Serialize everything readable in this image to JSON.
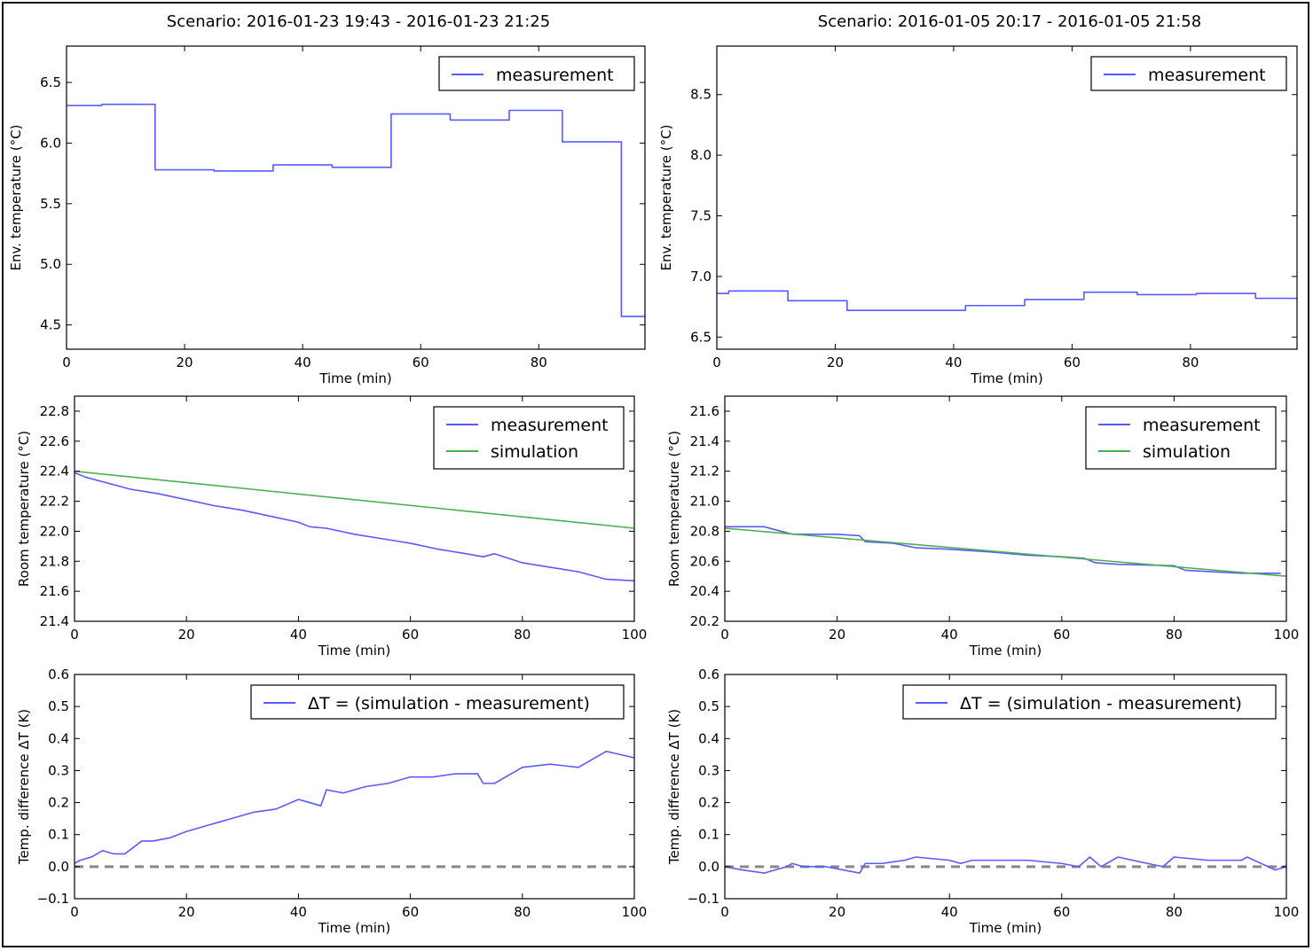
{
  "colors": {
    "measurement": "#5a5aff",
    "simulation": "#4caf50",
    "zero_line": "#888888"
  },
  "chart_data": [
    {
      "id": "env-left",
      "type": "line",
      "title": "Scenario: 2016-01-23 19:43 - 2016-01-23 21:25",
      "xlabel": "Time (min)",
      "ylabel": "Env. temperature (°C)",
      "xlim": [
        0,
        98
      ],
      "ylim": [
        4.3,
        6.8
      ],
      "xticks": [
        0,
        20,
        40,
        60,
        80
      ],
      "yticks": [
        4.5,
        5.0,
        5.5,
        6.0,
        6.5
      ],
      "ytick_labels": [
        "4.5",
        "5.0",
        "5.5",
        "6.0",
        "6.5"
      ],
      "legend": "top-right",
      "series": [
        {
          "name": "measurement",
          "color_key": "measurement",
          "step": true,
          "x": [
            0,
            6,
            15,
            25,
            35,
            45,
            55,
            65,
            75,
            84,
            94,
            98
          ],
          "y": [
            6.31,
            6.32,
            5.78,
            5.77,
            5.82,
            5.8,
            6.24,
            6.19,
            6.27,
            6.01,
            4.57,
            4.57
          ]
        }
      ]
    },
    {
      "id": "env-right",
      "type": "line",
      "title": "Scenario: 2016-01-05 20:17 - 2016-01-05 21:58",
      "xlabel": "Time (min)",
      "ylabel": "Env. temperature (°C)",
      "xlim": [
        0,
        98
      ],
      "ylim": [
        6.4,
        8.9
      ],
      "xticks": [
        0,
        20,
        40,
        60,
        80
      ],
      "yticks": [
        6.5,
        7.0,
        7.5,
        8.0,
        8.5
      ],
      "ytick_labels": [
        "6.5",
        "7.0",
        "7.5",
        "8.0",
        "8.5"
      ],
      "legend": "top-right",
      "series": [
        {
          "name": "measurement",
          "color_key": "measurement",
          "step": true,
          "x": [
            0,
            2,
            12,
            22,
            32,
            42,
            52,
            62,
            71,
            81,
            91,
            98
          ],
          "y": [
            6.86,
            6.88,
            6.8,
            6.72,
            6.72,
            6.76,
            6.81,
            6.87,
            6.85,
            6.86,
            6.82,
            6.82
          ]
        }
      ]
    },
    {
      "id": "room-left",
      "type": "line",
      "xlabel": "Time (min)",
      "ylabel": "Room temperature (°C)",
      "xlim": [
        0,
        100
      ],
      "ylim": [
        21.4,
        22.9
      ],
      "xticks": [
        0,
        20,
        40,
        60,
        80,
        100
      ],
      "yticks": [
        21.4,
        21.6,
        21.8,
        22.0,
        22.2,
        22.4,
        22.6,
        22.8
      ],
      "ytick_labels": [
        "21.4",
        "21.6",
        "21.8",
        "22.0",
        "22.2",
        "22.4",
        "22.6",
        "22.8"
      ],
      "legend": "top-right",
      "series": [
        {
          "name": "measurement",
          "color_key": "measurement",
          "x": [
            0,
            2,
            5,
            10,
            15,
            20,
            25,
            30,
            35,
            40,
            42,
            45,
            50,
            55,
            60,
            65,
            70,
            73,
            75,
            80,
            85,
            90,
            95,
            100
          ],
          "y": [
            22.39,
            22.36,
            22.33,
            22.28,
            22.25,
            22.21,
            22.17,
            22.14,
            22.1,
            22.06,
            22.03,
            22.02,
            21.98,
            21.95,
            21.92,
            21.88,
            21.85,
            21.83,
            21.85,
            21.79,
            21.76,
            21.73,
            21.68,
            21.67
          ]
        },
        {
          "name": "simulation",
          "color_key": "simulation",
          "x": [
            0,
            100
          ],
          "y": [
            22.4,
            22.02
          ]
        }
      ]
    },
    {
      "id": "room-right",
      "type": "line",
      "xlabel": "Time (min)",
      "ylabel": "Room temperature (°C)",
      "xlim": [
        0,
        100
      ],
      "ylim": [
        20.2,
        21.7
      ],
      "xticks": [
        0,
        20,
        40,
        60,
        80,
        100
      ],
      "yticks": [
        20.2,
        20.4,
        20.6,
        20.8,
        21.0,
        21.2,
        21.4,
        21.6
      ],
      "ytick_labels": [
        "20.2",
        "20.4",
        "20.6",
        "20.8",
        "21.0",
        "21.2",
        "21.4",
        "21.6"
      ],
      "legend": "top-right",
      "series": [
        {
          "name": "measurement",
          "color_key": "measurement",
          "x": [
            0,
            7,
            12,
            20,
            24,
            25,
            30,
            34,
            40,
            48,
            54,
            60,
            64,
            66,
            70,
            80,
            82,
            92,
            99
          ],
          "y": [
            20.83,
            20.83,
            20.78,
            20.78,
            20.77,
            20.73,
            20.72,
            20.69,
            20.68,
            20.66,
            20.64,
            20.63,
            20.62,
            20.59,
            20.58,
            20.57,
            20.54,
            20.52,
            20.52
          ]
        },
        {
          "name": "simulation",
          "color_key": "simulation",
          "x": [
            0,
            100
          ],
          "y": [
            20.82,
            20.5
          ]
        }
      ]
    },
    {
      "id": "diff-left",
      "type": "line",
      "xlabel": "Time (min)",
      "ylabel": "Temp. difference ΔT (K)",
      "xlim": [
        0,
        100
      ],
      "ylim": [
        -0.1,
        0.6
      ],
      "xticks": [
        0,
        20,
        40,
        60,
        80,
        100
      ],
      "yticks": [
        -0.1,
        0.0,
        0.1,
        0.2,
        0.3,
        0.4,
        0.5,
        0.6
      ],
      "ytick_labels": [
        "−0.1",
        "0.0",
        "0.1",
        "0.2",
        "0.3",
        "0.4",
        "0.5",
        "0.6"
      ],
      "legend": "top-right",
      "zero_line": true,
      "series": [
        {
          "name": "ΔT = (simulation - measurement)",
          "color_key": "measurement",
          "x": [
            0,
            1,
            3,
            5,
            7,
            9,
            12,
            14,
            17,
            20,
            24,
            28,
            32,
            36,
            40,
            42,
            44,
            45,
            48,
            52,
            56,
            60,
            64,
            68,
            72,
            73,
            75,
            80,
            85,
            90,
            95,
            100
          ],
          "y": [
            0.01,
            0.02,
            0.03,
            0.05,
            0.04,
            0.04,
            0.08,
            0.08,
            0.09,
            0.11,
            0.13,
            0.15,
            0.17,
            0.18,
            0.21,
            0.2,
            0.19,
            0.24,
            0.23,
            0.25,
            0.26,
            0.28,
            0.28,
            0.29,
            0.29,
            0.26,
            0.26,
            0.31,
            0.32,
            0.31,
            0.36,
            0.34
          ]
        }
      ]
    },
    {
      "id": "diff-right",
      "type": "line",
      "xlabel": "Time (min)",
      "ylabel": "Temp. difference ΔT (K)",
      "xlim": [
        0,
        100
      ],
      "ylim": [
        -0.1,
        0.6
      ],
      "xticks": [
        0,
        20,
        40,
        60,
        80,
        100
      ],
      "yticks": [
        -0.1,
        0.0,
        0.1,
        0.2,
        0.3,
        0.4,
        0.5,
        0.6
      ],
      "ytick_labels": [
        "−0.1",
        "0.0",
        "0.1",
        "0.2",
        "0.3",
        "0.4",
        "0.5",
        "0.6"
      ],
      "legend": "top-right",
      "zero_line": true,
      "series": [
        {
          "name": "ΔT = (simulation - measurement)",
          "color_key": "measurement",
          "x": [
            0,
            3,
            7,
            9,
            11,
            12,
            14,
            18,
            24,
            25,
            28,
            32,
            34,
            40,
            42,
            44,
            48,
            52,
            54,
            60,
            63,
            65,
            67,
            70,
            78,
            80,
            86,
            92,
            93,
            98,
            100
          ],
          "y": [
            0.0,
            -0.01,
            -0.02,
            -0.01,
            0.0,
            0.01,
            0.0,
            0.0,
            -0.02,
            0.01,
            0.01,
            0.02,
            0.03,
            0.02,
            0.01,
            0.02,
            0.02,
            0.02,
            0.02,
            0.01,
            0.0,
            0.03,
            0.0,
            0.03,
            0.0,
            0.03,
            0.02,
            0.02,
            0.03,
            -0.01,
            0.0
          ]
        }
      ]
    }
  ]
}
